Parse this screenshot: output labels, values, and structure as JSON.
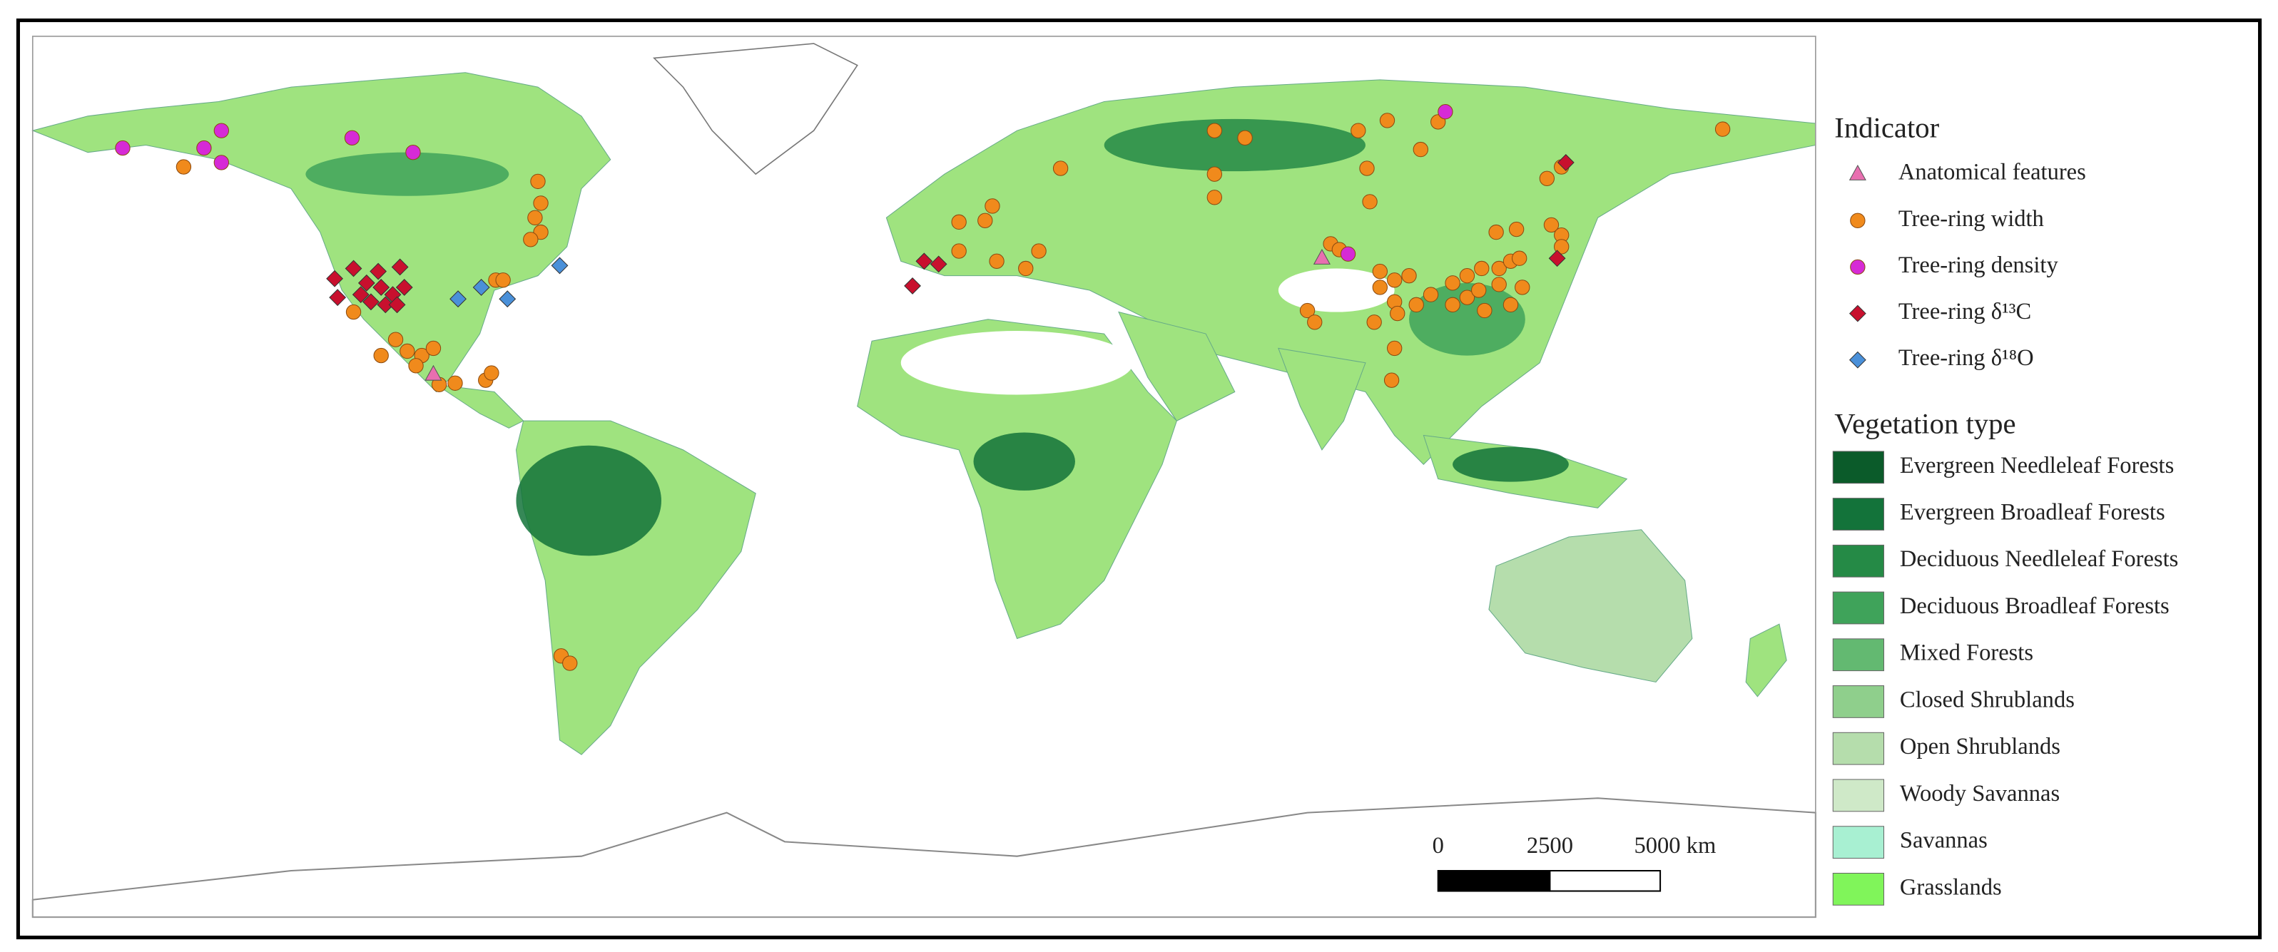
{
  "legend": {
    "indicator": {
      "title": "Indicator",
      "items": [
        {
          "label": "Anatomical features",
          "shape": "triangle",
          "color": "#e86fb0"
        },
        {
          "label": "Tree-ring width",
          "shape": "circle",
          "color": "#f08a1c"
        },
        {
          "label": "Tree-ring density",
          "shape": "circle",
          "color": "#d62ad6"
        },
        {
          "label": "Tree-ring δ¹³C",
          "shape": "diamond",
          "color": "#c8102e"
        },
        {
          "label": "Tree-ring δ¹⁸O",
          "shape": "diamond",
          "color": "#4a90d9"
        }
      ]
    },
    "vegetation": {
      "title": "Vegetation type",
      "items": [
        {
          "label": "Evergreen Needleleaf Forests",
          "color": "#0b5b2a"
        },
        {
          "label": "Evergreen Broadleaf Forests",
          "color": "#13733a"
        },
        {
          "label": "Deciduous Needleleaf Forests",
          "color": "#258a46"
        },
        {
          "label": "Deciduous Broadleaf Forests",
          "color": "#3fa35a"
        },
        {
          "label": "Mixed Forests",
          "color": "#63b971"
        },
        {
          "label": "Closed Shrublands",
          "color": "#8fcf8c"
        },
        {
          "label": "Open Shrublands",
          "color": "#b5ddac"
        },
        {
          "label": "Woody Savannas",
          "color": "#cfe9c8"
        },
        {
          "label": "Savannas",
          "color": "#a8f0d2"
        },
        {
          "label": "Grasslands",
          "color": "#80f55a"
        }
      ]
    }
  },
  "scale_bar": {
    "labels": [
      "0",
      "2500",
      "5000 km"
    ]
  }
}
